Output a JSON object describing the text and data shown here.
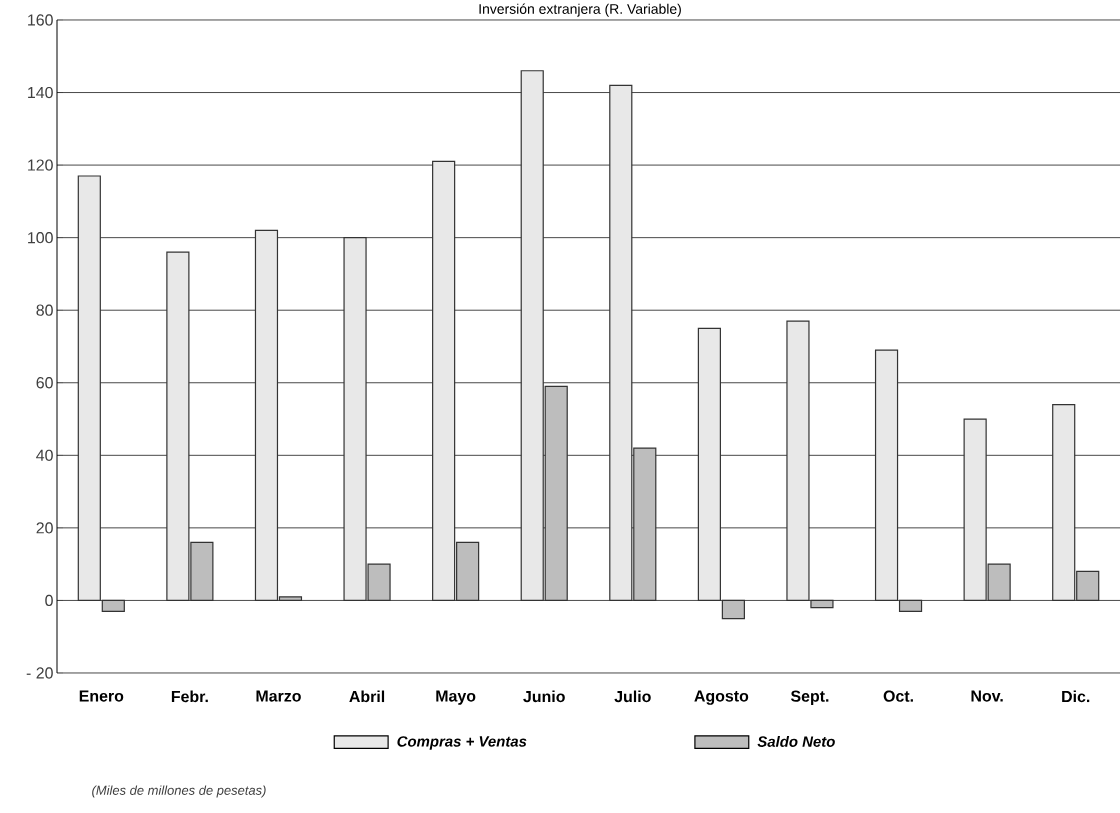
{
  "chart_data": {
    "type": "bar",
    "title": "Inversión extranjera (R. Variable)",
    "categories": [
      "Enero",
      "Febr.",
      "Marzo",
      "Abril",
      "Mayo",
      "Junio",
      "Julio",
      "Agosto",
      "Sept.",
      "Oct.",
      "Nov.",
      "Dic."
    ],
    "series": [
      {
        "name": "Compras + Ventas",
        "color": "#e8e8e8",
        "values": [
          117,
          96,
          102,
          100,
          121,
          146,
          142,
          75,
          77,
          69,
          50,
          54
        ]
      },
      {
        "name": "Saldo Neto",
        "color": "#bdbdbd",
        "values": [
          -3,
          16,
          1,
          10,
          16,
          59,
          42,
          -5,
          -2,
          -3,
          10,
          8
        ]
      }
    ],
    "ylim": [
      -20,
      160
    ],
    "yticks": [
      {
        "value": -20,
        "label": "- 20"
      },
      0,
      20,
      40,
      60,
      80,
      100,
      120,
      140,
      160
    ],
    "grid": "y",
    "legend": "bottom",
    "annotations": [
      "(Miles de millones de pesetas)"
    ]
  }
}
